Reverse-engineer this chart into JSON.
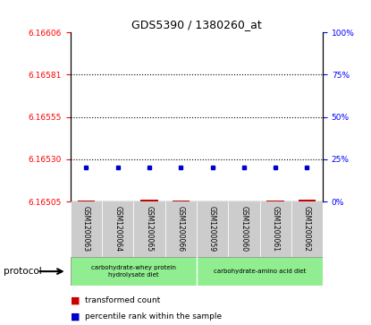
{
  "title": "GDS5390 / 1380260_at",
  "samples": [
    "GSM1200063",
    "GSM1200064",
    "GSM1200065",
    "GSM1200066",
    "GSM1200059",
    "GSM1200060",
    "GSM1200061",
    "GSM1200062"
  ],
  "red_tops": [
    6.165053,
    6.165049,
    6.16506,
    6.1650565,
    6.165049,
    6.1650495,
    6.165058,
    6.165062
  ],
  "blue_pct": [
    20,
    20,
    20,
    20,
    20,
    20,
    20,
    20
  ],
  "baseline": 6.16505,
  "y_min": 6.16505,
  "y_max": 6.16606,
  "right_ticks": [
    0,
    25,
    50,
    75,
    100
  ],
  "grid_pct": [
    25,
    50,
    75
  ],
  "red_color": "#cc0000",
  "blue_color": "#0000cc",
  "protocol1_label": "carbohydrate-whey protein\nhydrolysate diet",
  "protocol2_label": "carbohydrate-amino acid diet",
  "protocol_color": "#90ee90",
  "sample_bg": "#cccccc"
}
